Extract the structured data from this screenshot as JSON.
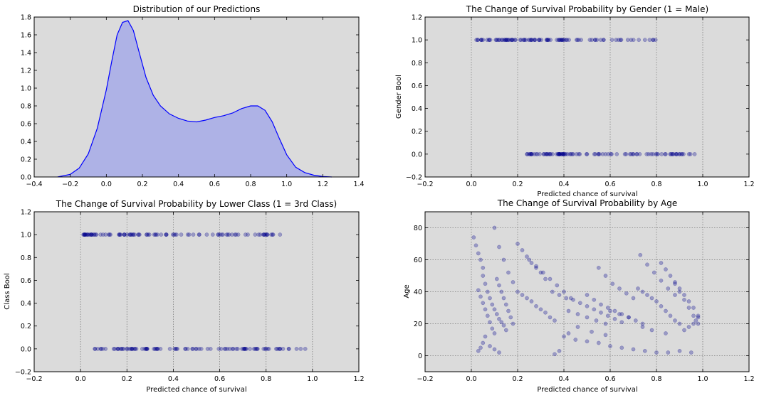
{
  "figure": {
    "background": "#ffffff",
    "axes_background": "#dbdbdb",
    "fill_color": "#aeb2e6",
    "line_color": "#0000ff",
    "point_color": "#00008b",
    "grid_color": "#7f7f7f"
  },
  "chart_data": [
    {
      "type": "area",
      "title": "Distribution of our Predictions",
      "xlabel": "",
      "ylabel": "",
      "xlim": [
        -0.4,
        1.4
      ],
      "ylim": [
        0.0,
        1.8
      ],
      "xticks": [
        "−0.4",
        "−0.2",
        "0.0",
        "0.2",
        "0.4",
        "0.6",
        "0.8",
        "1.0",
        "1.2",
        "1.4"
      ],
      "yticks": [
        "0.0",
        "0.2",
        "0.4",
        "0.6",
        "0.8",
        "1.0",
        "1.2",
        "1.4",
        "1.6",
        "1.8"
      ],
      "grid": "none",
      "series": [
        {
          "x": [
            -0.27,
            -0.2,
            -0.15,
            -0.1,
            -0.05,
            0.0,
            0.03,
            0.06,
            0.09,
            0.12,
            0.15,
            0.18,
            0.22,
            0.26,
            0.3,
            0.35,
            0.4,
            0.45,
            0.5,
            0.55,
            0.6,
            0.65,
            0.7,
            0.75,
            0.8,
            0.84,
            0.88,
            0.92,
            0.96,
            1.0,
            1.05,
            1.1,
            1.15,
            1.2,
            1.25
          ],
          "y": [
            0.0,
            0.03,
            0.1,
            0.26,
            0.55,
            0.98,
            1.3,
            1.6,
            1.74,
            1.76,
            1.65,
            1.42,
            1.12,
            0.92,
            0.8,
            0.71,
            0.66,
            0.63,
            0.62,
            0.64,
            0.67,
            0.69,
            0.72,
            0.77,
            0.8,
            0.8,
            0.75,
            0.62,
            0.43,
            0.25,
            0.11,
            0.05,
            0.02,
            0.005,
            0.0
          ]
        }
      ]
    },
    {
      "type": "scatter",
      "title": "The Change of Survival Probability by Gender (1 = Male)",
      "xlabel": "Predicted chance of survival",
      "ylabel": "Gender Bool",
      "xlim": [
        -0.2,
        1.2
      ],
      "ylim": [
        -0.2,
        1.2
      ],
      "xticks": [
        "−0.2",
        "0.0",
        "0.2",
        "0.4",
        "0.6",
        "0.8",
        "1.0",
        "1.2"
      ],
      "yticks": [
        "−0.2",
        "0.0",
        "0.2",
        "0.4",
        "0.6",
        "0.8",
        "1.0",
        "1.2"
      ],
      "grid": "x",
      "series": [
        {
          "y": 1,
          "range": [
            0.02,
            0.8
          ]
        },
        {
          "y": 0,
          "range": [
            0.24,
            0.97
          ]
        }
      ]
    },
    {
      "type": "scatter",
      "title": "The Change of Survival Probability by Lower Class (1 = 3rd Class)",
      "xlabel": "Predicted chance of survival",
      "ylabel": "Class Bool",
      "xlim": [
        -0.2,
        1.2
      ],
      "ylim": [
        -0.2,
        1.2
      ],
      "xticks": [
        "−0.2",
        "0.0",
        "0.2",
        "0.4",
        "0.6",
        "0.8",
        "1.0",
        "1.2"
      ],
      "yticks": [
        "−0.2",
        "0.0",
        "0.2",
        "0.4",
        "0.6",
        "0.8",
        "1.0",
        "1.2"
      ],
      "grid": "x",
      "series": [
        {
          "y": 1,
          "range": [
            0.01,
            0.87
          ]
        },
        {
          "y": 0,
          "range": [
            0.06,
            0.97
          ]
        }
      ]
    },
    {
      "type": "scatter",
      "title": "The Change of Survival Probability by Age",
      "xlabel": "Predicted chance of survival",
      "ylabel": "Age",
      "xlim": [
        -0.2,
        1.2
      ],
      "ylim": [
        -10,
        90
      ],
      "xticks": [
        "−0.2",
        "0.0",
        "0.2",
        "0.4",
        "0.6",
        "0.8",
        "1.0",
        "1.2"
      ],
      "yticks": [
        "0",
        "20",
        "40",
        "60",
        "80"
      ],
      "grid": "both",
      "series": [
        {
          "x": [
            0.05,
            0.06,
            0.07,
            0.08,
            0.09,
            0.1,
            0.11,
            0.12,
            0.13,
            0.14,
            0.15
          ],
          "y": [
            50,
            45,
            40,
            36,
            32,
            29,
            26,
            23,
            21,
            19,
            16
          ]
        },
        {
          "x": [
            0.03,
            0.04,
            0.05,
            0.06,
            0.07,
            0.08,
            0.09,
            0.1
          ],
          "y": [
            41,
            37,
            33,
            29,
            25,
            21,
            17,
            14
          ]
        },
        {
          "x": [
            0.11,
            0.12,
            0.13,
            0.14,
            0.15,
            0.16,
            0.17,
            0.18
          ],
          "y": [
            48,
            44,
            40,
            36,
            32,
            28,
            24,
            20
          ]
        },
        {
          "x": [
            0.2,
            0.22,
            0.24,
            0.26,
            0.28,
            0.3,
            0.32,
            0.34,
            0.36
          ],
          "y": [
            40,
            38,
            36,
            34,
            31,
            29,
            27,
            24,
            22
          ]
        },
        {
          "x": [
            0.35,
            0.38,
            0.41,
            0.44,
            0.47,
            0.5,
            0.53,
            0.56,
            0.59,
            0.62,
            0.65
          ],
          "y": [
            40,
            38,
            36,
            35,
            33,
            31,
            29,
            27,
            25,
            23,
            21
          ]
        },
        {
          "x": [
            0.5,
            0.53,
            0.56,
            0.59,
            0.62,
            0.65,
            0.68,
            0.71,
            0.74
          ],
          "y": [
            38,
            35,
            32,
            30,
            28,
            26,
            24,
            22,
            20
          ]
        },
        {
          "x": [
            0.72,
            0.74,
            0.76,
            0.78,
            0.8,
            0.82,
            0.84,
            0.86,
            0.88,
            0.9
          ],
          "y": [
            42,
            40,
            38,
            36,
            34,
            31,
            28,
            25,
            22,
            20
          ]
        },
        {
          "x": [
            0.82,
            0.84,
            0.86,
            0.88,
            0.9,
            0.92,
            0.94,
            0.96,
            0.98
          ],
          "y": [
            58,
            54,
            50,
            46,
            42,
            38,
            34,
            30,
            25
          ]
        },
        {
          "x": [
            0.88,
            0.9,
            0.92,
            0.94,
            0.96,
            0.98
          ],
          "y": [
            45,
            40,
            35,
            30,
            25,
            20
          ]
        },
        {
          "x": [
            0.03,
            0.04,
            0.05,
            0.06,
            0.08,
            0.1,
            0.12
          ],
          "y": [
            3,
            5,
            8,
            12,
            6,
            4,
            2
          ]
        },
        {
          "x": [
            0.01,
            0.02,
            0.03,
            0.04,
            0.05
          ],
          "y": [
            74,
            69,
            64,
            60,
            55
          ]
        },
        {
          "x": [
            0.1,
            0.12,
            0.14,
            0.16,
            0.18
          ],
          "y": [
            80,
            68,
            60,
            52,
            46
          ]
        },
        {
          "x": [
            0.2,
            0.22,
            0.24,
            0.26,
            0.28,
            0.3,
            0.32
          ],
          "y": [
            70,
            66,
            62,
            58,
            55,
            52,
            48
          ]
        },
        {
          "x": [
            0.25,
            0.28,
            0.31,
            0.34,
            0.37,
            0.4,
            0.43
          ],
          "y": [
            60,
            56,
            52,
            48,
            44,
            40,
            36
          ]
        },
        {
          "x": [
            0.55,
            0.58,
            0.61,
            0.64,
            0.67,
            0.7
          ],
          "y": [
            55,
            50,
            45,
            42,
            39,
            36
          ]
        },
        {
          "x": [
            0.73,
            0.76,
            0.79,
            0.82,
            0.85,
            0.88
          ],
          "y": [
            63,
            57,
            52,
            47,
            42,
            38
          ]
        },
        {
          "x": [
            0.4,
            0.45,
            0.5,
            0.55,
            0.6,
            0.65,
            0.7,
            0.75,
            0.8,
            0.85,
            0.9,
            0.95
          ],
          "y": [
            12,
            10,
            9,
            8,
            6,
            5,
            4,
            3,
            2,
            2,
            3,
            2
          ]
        },
        {
          "x": [
            0.36,
            0.38,
            0.42,
            0.46,
            0.52,
            0.58
          ],
          "y": [
            1,
            3,
            14,
            18,
            15,
            13
          ]
        },
        {
          "x": [
            0.6,
            0.64,
            0.68,
            0.74,
            0.78,
            0.84
          ],
          "y": [
            28,
            26,
            24,
            18,
            16,
            14
          ]
        },
        {
          "x": [
            0.42,
            0.46,
            0.5,
            0.54,
            0.58
          ],
          "y": [
            28,
            26,
            24,
            22,
            20
          ]
        },
        {
          "x": [
            0.92,
            0.94,
            0.96,
            0.97,
            0.98
          ],
          "y": [
            16,
            18,
            20,
            22,
            24
          ]
        }
      ]
    }
  ]
}
